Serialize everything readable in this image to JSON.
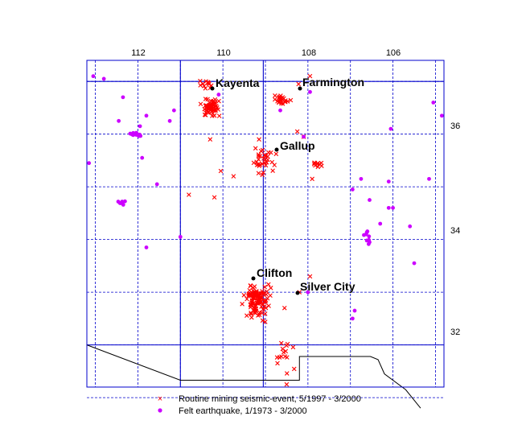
{
  "colors": {
    "mining": "#ff0000",
    "quake": "#cc00ff",
    "grid": "#0000cc",
    "border": "#000000"
  },
  "axis_labels": {
    "lon": [
      "112",
      "110",
      "108",
      "106"
    ],
    "lat": [
      "36",
      "34",
      "32"
    ]
  },
  "cities": [
    {
      "name": "Kayenta",
      "lon": -110.26,
      "lat": 36.73
    },
    {
      "name": "Farmington",
      "lon": -108.2,
      "lat": 36.73
    },
    {
      "name": "Gallup",
      "lon": -108.74,
      "lat": 35.53
    },
    {
      "name": "Clifton",
      "lon": -109.3,
      "lat": 33.05
    },
    {
      "name": "Silver City",
      "lon": -108.27,
      "lat": 32.77
    }
  ],
  "legend": {
    "mining_label": "Routine mining seismic-event, 5/1997 - 3/2000",
    "quake_label": "Felt earthquake, 1/1973 - 3/2000"
  },
  "chart_data": {
    "type": "scatter",
    "xlim": [
      -113.2,
      -104.8
    ],
    "ylim": [
      31.2,
      37.4
    ],
    "grid": true,
    "series": [
      {
        "name": "Routine mining seismic-event, 5/1997 - 3/2000",
        "marker": "x",
        "clusters": [
          {
            "lon": -110.3,
            "lat": 36.5,
            "spread_lon": 0.22,
            "spread_lat": 0.14,
            "count": 60
          },
          {
            "lon": -110.35,
            "lat": 36.95,
            "spread_lon": 0.15,
            "spread_lat": 0.08,
            "count": 12
          },
          {
            "lon": -108.62,
            "lat": 36.65,
            "spread_lon": 0.15,
            "spread_lat": 0.08,
            "count": 25
          },
          {
            "lon": -109.05,
            "lat": 35.5,
            "spread_lon": 0.25,
            "spread_lat": 0.18,
            "count": 35
          },
          {
            "lon": -107.8,
            "lat": 35.45,
            "spread_lon": 0.1,
            "spread_lat": 0.06,
            "count": 10
          },
          {
            "lon": -109.2,
            "lat": 32.85,
            "spread_lon": 0.25,
            "spread_lat": 0.3,
            "count": 110
          },
          {
            "lon": -108.5,
            "lat": 31.8,
            "spread_lon": 0.2,
            "spread_lat": 0.3,
            "count": 15
          }
        ],
        "points": [
          {
            "lon": -107.95,
            "lat": 37.1
          },
          {
            "lon": -108.22,
            "lat": 36.95
          },
          {
            "lon": -110.3,
            "lat": 35.9
          },
          {
            "lon": -109.15,
            "lat": 35.9
          },
          {
            "lon": -108.1,
            "lat": 35.95
          },
          {
            "lon": -108.25,
            "lat": 36.05
          },
          {
            "lon": -110.05,
            "lat": 35.3
          },
          {
            "lon": -109.75,
            "lat": 35.2
          },
          {
            "lon": -107.9,
            "lat": 35.15
          },
          {
            "lon": -110.8,
            "lat": 34.85
          },
          {
            "lon": -110.2,
            "lat": 34.8
          },
          {
            "lon": -107.95,
            "lat": 33.3
          },
          {
            "lon": -108.2,
            "lat": 33.0
          },
          {
            "lon": -108.55,
            "lat": 32.7
          },
          {
            "lon": -108.5,
            "lat": 31.25
          }
        ]
      },
      {
        "name": "Felt earthquake, 1/1973 - 3/2000",
        "marker": "dot",
        "clusters": [
          {
            "lon": -112.05,
            "lat": 36.0,
            "spread_lon": 0.12,
            "spread_lat": 0.05,
            "count": 12
          },
          {
            "lon": -112.4,
            "lat": 34.7,
            "spread_lon": 0.1,
            "spread_lat": 0.04,
            "count": 8
          },
          {
            "lon": -106.6,
            "lat": 34.05,
            "spread_lon": 0.1,
            "spread_lat": 0.12,
            "count": 8
          }
        ],
        "points": [
          {
            "lon": -113.05,
            "lat": 37.1
          },
          {
            "lon": -112.8,
            "lat": 37.05
          },
          {
            "lon": -112.35,
            "lat": 36.7
          },
          {
            "lon": -112.45,
            "lat": 36.25
          },
          {
            "lon": -111.8,
            "lat": 36.35
          },
          {
            "lon": -111.95,
            "lat": 36.15
          },
          {
            "lon": -111.9,
            "lat": 35.55
          },
          {
            "lon": -111.25,
            "lat": 36.25
          },
          {
            "lon": -111.15,
            "lat": 36.45
          },
          {
            "lon": -111.55,
            "lat": 35.05
          },
          {
            "lon": -113.15,
            "lat": 35.45
          },
          {
            "lon": -111.8,
            "lat": 33.85
          },
          {
            "lon": -111.0,
            "lat": 34.05
          },
          {
            "lon": -107.95,
            "lat": 36.8
          },
          {
            "lon": -106.05,
            "lat": 36.1
          },
          {
            "lon": -105.05,
            "lat": 36.6
          },
          {
            "lon": -104.85,
            "lat": 36.35
          },
          {
            "lon": -105.15,
            "lat": 35.15
          },
          {
            "lon": -106.1,
            "lat": 35.1
          },
          {
            "lon": -106.75,
            "lat": 35.15
          },
          {
            "lon": -106.95,
            "lat": 34.95
          },
          {
            "lon": -106.55,
            "lat": 34.75
          },
          {
            "lon": -106.1,
            "lat": 34.6
          },
          {
            "lon": -106.3,
            "lat": 34.3
          },
          {
            "lon": -106.0,
            "lat": 34.6
          },
          {
            "lon": -105.6,
            "lat": 34.25
          },
          {
            "lon": -105.5,
            "lat": 33.55
          },
          {
            "lon": -106.55,
            "lat": 33.95
          },
          {
            "lon": -106.95,
            "lat": 32.5
          },
          {
            "lon": -106.9,
            "lat": 32.65
          },
          {
            "lon": -108.0,
            "lat": 33.0
          },
          {
            "lon": -108.1,
            "lat": 35.95
          },
          {
            "lon": -110.1,
            "lat": 36.75
          },
          {
            "lon": -108.65,
            "lat": 36.45
          }
        ]
      }
    ]
  }
}
